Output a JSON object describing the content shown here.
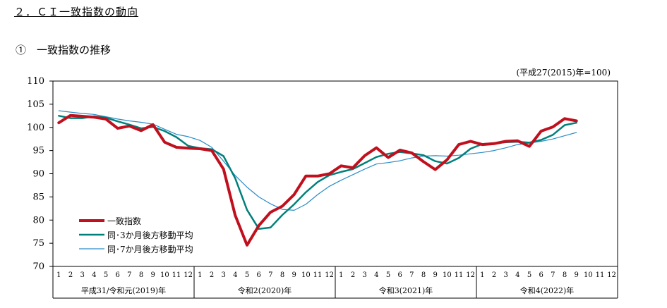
{
  "heading": {
    "section": "２．ＣＩ一致指数の動向",
    "subsection": "①　一致指数の推移",
    "unit_note": "(平成27(2015)年=100)"
  },
  "colors": {
    "main": "#c0101e",
    "ma3": "#00807a",
    "ma7": "#2a8cc8",
    "axis": "#000000"
  },
  "chart_data": {
    "type": "line",
    "ylim": [
      70,
      110
    ],
    "y_ticks": [
      70,
      75,
      80,
      85,
      90,
      95,
      100,
      105,
      110
    ],
    "months": [
      "1",
      "2",
      "3",
      "4",
      "5",
      "6",
      "7",
      "8",
      "9",
      "10",
      "11",
      "12"
    ],
    "year_groups": [
      "平成31/令和元(2019)年",
      "令和2(2020)年",
      "令和3(2021)年",
      "令和4(2022)年"
    ],
    "legend_position": "lower-left",
    "series": [
      {
        "name": "一致指数",
        "color": "#c0101e",
        "width": 4,
        "values": [
          101.0,
          102.6,
          102.4,
          102.2,
          101.8,
          99.8,
          100.3,
          99.3,
          100.6,
          96.8,
          95.7,
          95.5,
          95.4,
          95.0,
          91.0,
          81.0,
          74.6,
          78.8,
          81.7,
          83.0,
          85.5,
          89.5,
          89.5,
          90.0,
          91.7,
          91.3,
          93.9,
          95.6,
          93.5,
          95.1,
          94.5,
          92.6,
          90.9,
          93.0,
          96.3,
          97.0,
          96.3,
          96.5,
          97.0,
          97.1,
          95.9,
          99.2,
          100.1,
          101.9,
          101.4
        ]
      },
      {
        "name": "同･3か月後方移動平均",
        "color": "#00807a",
        "width": 2.5,
        "values": [
          102.5,
          102.0,
          102.0,
          102.4,
          102.1,
          101.3,
          100.6,
          99.8,
          100.1,
          99.2,
          97.9,
          96.0,
          95.5,
          95.3,
          93.8,
          89.0,
          82.2,
          78.1,
          78.4,
          81.1,
          83.4,
          86.0,
          88.2,
          89.7,
          90.4,
          91.0,
          92.3,
          93.6,
          94.3,
          94.7,
          94.4,
          94.0,
          92.7,
          92.2,
          93.4,
          95.4,
          96.4,
          96.6,
          96.8,
          96.9,
          96.7,
          97.3,
          98.4,
          100.5,
          101.0
        ]
      },
      {
        "name": "同･7か月後方移動平均",
        "color": "#2a8cc8",
        "width": 1.2,
        "values": [
          103.6,
          103.3,
          103.0,
          102.8,
          102.3,
          101.8,
          101.4,
          101.1,
          100.7,
          99.6,
          98.5,
          98.0,
          97.2,
          95.7,
          92.7,
          89.6,
          87.1,
          85.0,
          83.5,
          82.3,
          82.1,
          83.4,
          85.5,
          87.3,
          88.6,
          89.8,
          91.0,
          92.1,
          92.4,
          92.8,
          93.4,
          93.8,
          93.9,
          93.8,
          94.0,
          94.3,
          94.6,
          95.0,
          95.6,
          96.3,
          96.6,
          97.0,
          97.5,
          98.2,
          98.9
        ]
      }
    ]
  }
}
